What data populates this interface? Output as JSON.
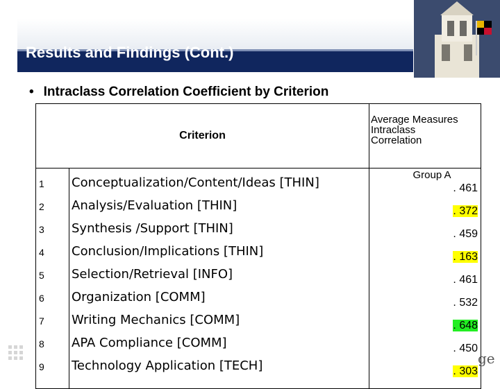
{
  "slide": {
    "title": "Results and Findings (Cont.)",
    "bullet": "Intraclass Correlation Coefficient by Criterion",
    "logo_text": "ge"
  },
  "table": {
    "criterion_header": "Criterion",
    "measure_header": [
      "Average Measures",
      "Intraclass",
      "Correlation"
    ],
    "group_label": "Group A",
    "rows": [
      {
        "num": "1",
        "criterion": "Conceptualization/Content/Ideas [THIN]",
        "value": ". 461",
        "highlight": "none"
      },
      {
        "num": "2",
        "criterion": "Analysis/Evaluation [THIN]",
        "value": ". 372",
        "highlight": "#ffff00"
      },
      {
        "num": "3",
        "criterion": "Synthesis /Support [THIN]",
        "value": ". 459",
        "highlight": "none"
      },
      {
        "num": "4",
        "criterion": "Conclusion/Implications [THIN]",
        "value": ". 163",
        "highlight": "#ffff00"
      },
      {
        "num": "5",
        "criterion": "Selection/Retrieval [INFO]",
        "value": ". 461",
        "highlight": "none"
      },
      {
        "num": "6",
        "criterion": "Organization [COMM]",
        "value": ". 532",
        "highlight": "none"
      },
      {
        "num": "7",
        "criterion": "Writing Mechanics [COMM]",
        "value": ". 648",
        "highlight": "#22ee22"
      },
      {
        "num": "8",
        "criterion": "APA Compliance [COMM]",
        "value": ". 450",
        "highlight": "none"
      },
      {
        "num": "9",
        "criterion": "Technology Application [TECH]",
        "value": ". 303",
        "highlight": "#ffff00"
      }
    ]
  }
}
